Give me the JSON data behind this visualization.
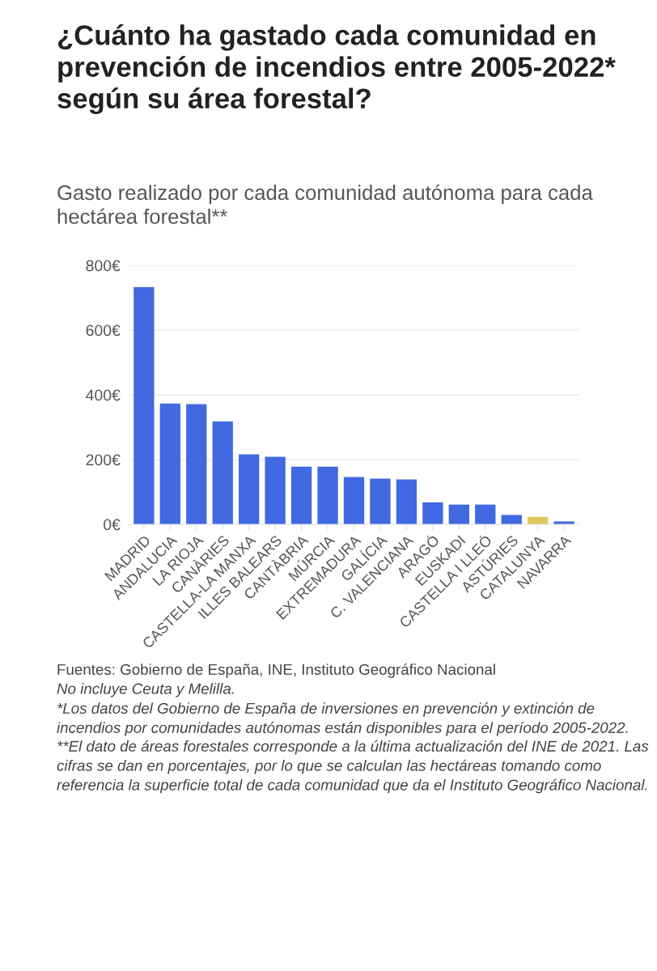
{
  "chart_data": {
    "type": "bar",
    "title": "¿Cuánto ha gastado cada comunidad en prevención de incendios entre 2005-2022* según su área forestal?",
    "subtitle": "Gasto realizado por cada comunidad autónoma para cada hectárea forestal**",
    "categories": [
      "MADRID",
      "ANDALUCIA",
      "LA RIOJA",
      "CANÀRIES",
      "CASTELLA-LA MANXA",
      "ILLES BALEARS",
      "CANTÀBRIA",
      "MÚRCIA",
      "EXTREMADURA",
      "GALÍCIA",
      "C. VALENCIANA",
      "ARAGÓ",
      "EUSKADI",
      "CASTELLA I LLEÓ",
      "ASTÚRIES",
      "CATALUNYA",
      "NAVARRA"
    ],
    "values": [
      733,
      373,
      371,
      318,
      216,
      209,
      178,
      178,
      146,
      141,
      139,
      68,
      61,
      61,
      29,
      23,
      9
    ],
    "colors": [
      "#4169e1",
      "#4169e1",
      "#4169e1",
      "#4169e1",
      "#4169e1",
      "#4169e1",
      "#4169e1",
      "#4169e1",
      "#4169e1",
      "#4169e1",
      "#4169e1",
      "#4169e1",
      "#4169e1",
      "#4169e1",
      "#4169e1",
      "#dcc95a",
      "#4169e1"
    ],
    "ylim": [
      0,
      800
    ],
    "yticks": [
      {
        "value": 0,
        "label": "0€"
      },
      {
        "value": 200,
        "label": "200€"
      },
      {
        "value": 400,
        "label": "400€"
      },
      {
        "value": 600,
        "label": "600€"
      },
      {
        "value": 800,
        "label": "800€"
      }
    ],
    "grid": "y",
    "annotations": [
      "Fuentes: Gobierno de España, INE, Instituto Geográfico Nacional",
      "No incluye Ceuta y Melilla.",
      "*Los datos del Gobierno de España de inversiones en prevención y extinción de incendios por comunidades autónomas están disponibles para el período 2005-2022.",
      "**El dato de áreas forestales corresponde a la última actualización del INE de 2021. Las cifras se dan en porcentajes, por lo que se calculan las hectáreas tomando como referencia la superficie total de cada comunidad que da el Instituto Geográfico Nacional."
    ]
  }
}
